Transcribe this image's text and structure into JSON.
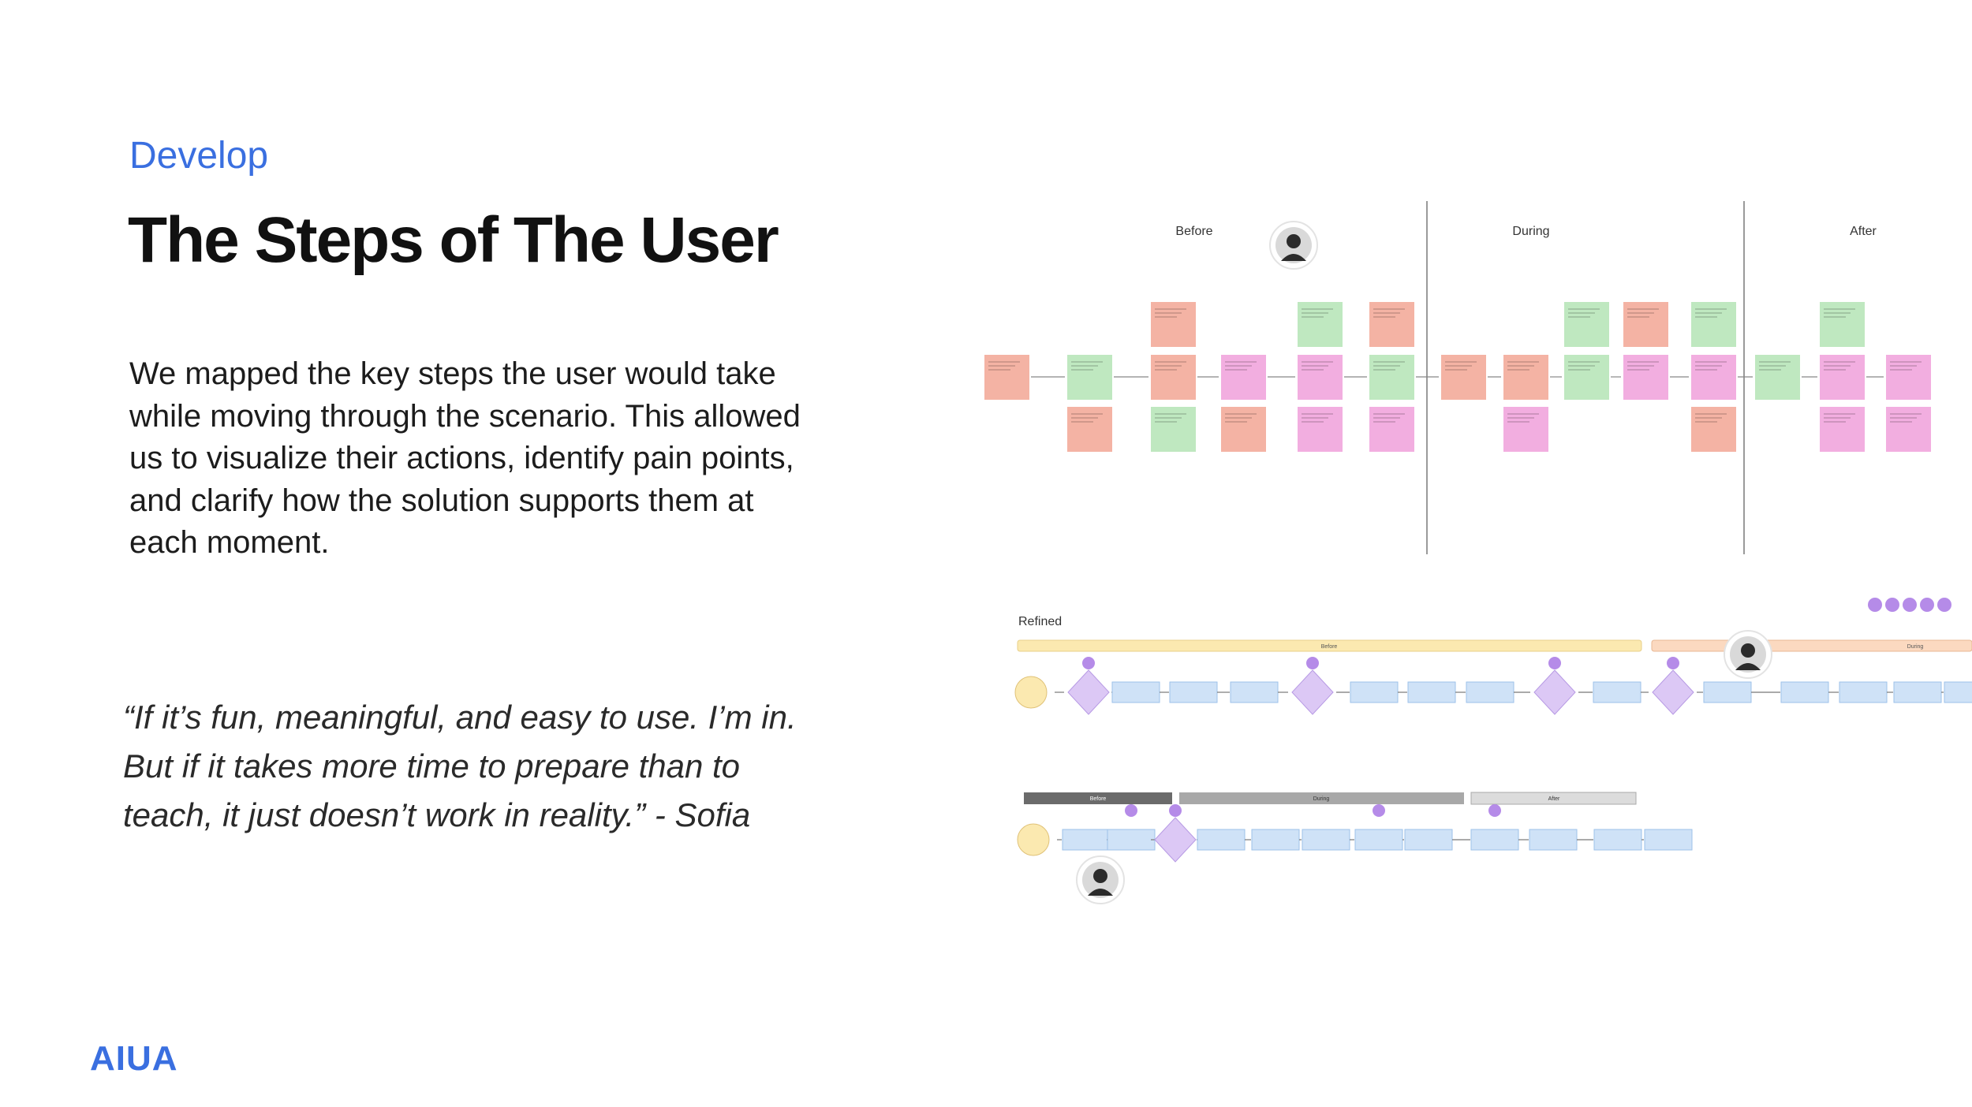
{
  "header": {
    "section": "Develop",
    "title": "The Steps of The User"
  },
  "body": {
    "paragraph": [
      "We mapped the key steps the user would take",
      "while moving through the scenario. This allowed",
      "us to visualize their actions, identify pain points,",
      "and clarify how the solution supports them at",
      "each moment."
    ],
    "quote": [
      "“If it’s fun, meaningful, and easy to use. I’m in.",
      "But if it takes more time to prepare than to",
      "teach, it just doesn’t work in reality.” - Sofia"
    ]
  },
  "board": {
    "phases": [
      "Before",
      "During",
      "After"
    ],
    "refined_label": "Refined",
    "refined_bands": [
      "Before",
      "During"
    ],
    "lane_bars": [
      "Before",
      "During",
      "After"
    ]
  },
  "footer": {
    "logo": "AIUA"
  }
}
